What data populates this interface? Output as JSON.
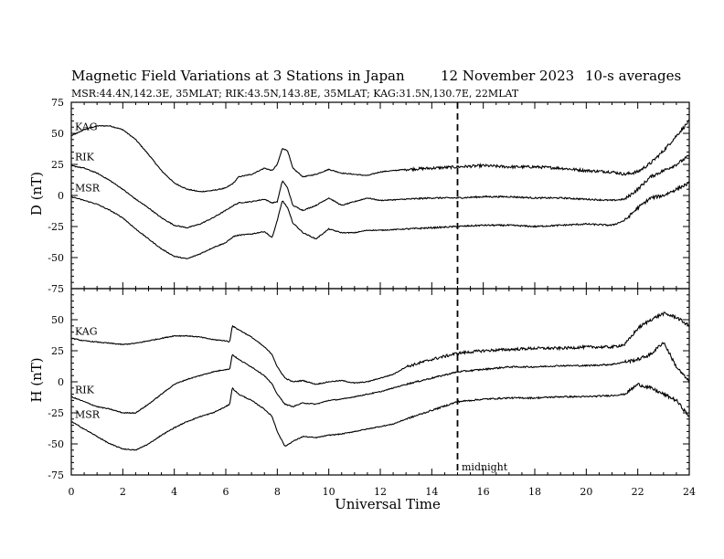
{
  "chart_data": {
    "type": "line",
    "title": {
      "main": "Magnetic Field Variations at 3 Stations in Japan",
      "date": "12 November 2023",
      "averaging": "10-s averages"
    },
    "subtitle": "MSR:44.4N,142.3E, 35MLAT;  RIK:43.5N,143.8E, 35MLAT;  KAG:31.5N,130.7E, 22MLAT",
    "xlabel": "Universal Time",
    "xlim": [
      0,
      24
    ],
    "xticks": [
      0,
      2,
      4,
      6,
      8,
      10,
      12,
      14,
      16,
      18,
      20,
      22,
      24
    ],
    "grid": false,
    "annotations": [
      {
        "text": "midnight",
        "x": 15,
        "style": "dashed-vertical-line"
      }
    ],
    "panels": [
      {
        "name": "D",
        "ylabel": "D (nT)",
        "ylim": [
          -75,
          75
        ],
        "yticks": [
          75,
          50,
          25,
          0,
          -25,
          -50,
          -75
        ],
        "series": [
          {
            "name": "KAG",
            "x": [
              0,
              0.5,
              1,
              1.5,
              2,
              2.5,
              3,
              3.5,
              4,
              4.5,
              5,
              5.5,
              6,
              6.3,
              6.5,
              7,
              7.5,
              7.8,
              8,
              8.2,
              8.4,
              8.6,
              9,
              9.5,
              10,
              10.5,
              11,
              11.5,
              12,
              13,
              14,
              15,
              16,
              17,
              18,
              19,
              20,
              21,
              21.5,
              22,
              22.5,
              23,
              23.5,
              24
            ],
            "values": [
              48,
              53,
              56,
              56,
              53,
              45,
              33,
              20,
              10,
              5,
              3,
              4,
              6,
              10,
              15,
              17,
              22,
              20,
              25,
              38,
              36,
              22,
              15,
              17,
              21,
              18,
              17,
              16,
              19,
              21,
              22,
              23,
              24,
              23,
              23,
              22,
              20,
              19,
              17,
              19,
              26,
              36,
              48,
              60
            ]
          },
          {
            "name": "RIK",
            "x": [
              0,
              0.5,
              1,
              1.5,
              2,
              2.5,
              3,
              3.5,
              4,
              4.5,
              5,
              5.5,
              6,
              6.3,
              6.5,
              7,
              7.5,
              7.8,
              8,
              8.2,
              8.4,
              8.6,
              9,
              9.5,
              10,
              10.5,
              11,
              11.5,
              12,
              13,
              14,
              15,
              16,
              17,
              18,
              19,
              20,
              21,
              21.5,
              22,
              22.5,
              23,
              23.5,
              24
            ],
            "values": [
              24,
              22,
              18,
              12,
              5,
              -3,
              -10,
              -18,
              -24,
              -26,
              -23,
              -18,
              -12,
              -8,
              -6,
              -5,
              -3,
              -6,
              -5,
              12,
              6,
              -8,
              -12,
              -8,
              -2,
              -8,
              -5,
              -2,
              -4,
              -3,
              -2,
              -2,
              -1,
              -1,
              -2,
              -2,
              -3,
              -4,
              -3,
              5,
              15,
              20,
              25,
              32
            ]
          },
          {
            "name": "MSR",
            "x": [
              0,
              0.5,
              1,
              1.5,
              2,
              2.5,
              3,
              3.5,
              4,
              4.5,
              5,
              5.5,
              6,
              6.3,
              6.5,
              7,
              7.5,
              7.8,
              8,
              8.2,
              8.4,
              8.6,
              9,
              9.5,
              10,
              10.5,
              11,
              11.5,
              12,
              13,
              14,
              15,
              16,
              17,
              18,
              19,
              20,
              21,
              21.5,
              22,
              22.5,
              23,
              23.5,
              24
            ],
            "values": [
              -1,
              -4,
              -7,
              -12,
              -18,
              -27,
              -35,
              -43,
              -49,
              -51,
              -47,
              -42,
              -38,
              -33,
              -32,
              -31,
              -29,
              -34,
              -20,
              -4,
              -10,
              -22,
              -30,
              -35,
              -27,
              -30,
              -30,
              -28,
              -28,
              -27,
              -26,
              -25,
              -24,
              -24,
              -25,
              -24,
              -23,
              -24,
              -20,
              -10,
              -2,
              0,
              5,
              10
            ]
          }
        ]
      },
      {
        "name": "H",
        "ylabel": "H (nT)",
        "ylim": [
          -75,
          75
        ],
        "yticks": [
          50,
          25,
          0,
          -25,
          -50,
          -75
        ],
        "series": [
          {
            "name": "KAG",
            "x": [
              0,
              0.5,
              1,
              1.5,
              2,
              2.5,
              3,
              3.5,
              4,
              4.5,
              5,
              5.5,
              6,
              6.15,
              6.25,
              6.5,
              7,
              7.5,
              7.8,
              8,
              8.3,
              8.6,
              9,
              9.5,
              10,
              10.5,
              11,
              11.5,
              12,
              12.5,
              13,
              14,
              15,
              16,
              17,
              18,
              19,
              20,
              21,
              21.5,
              22,
              22.5,
              23,
              23.5,
              24
            ],
            "values": [
              35,
              33,
              32,
              31,
              30,
              31,
              33,
              35,
              37,
              37,
              36,
              34,
              33,
              32,
              45,
              42,
              36,
              28,
              22,
              12,
              3,
              0,
              1,
              -2,
              0,
              1,
              -1,
              0,
              3,
              6,
              12,
              18,
              23,
              25,
              26,
              27,
              27,
              28,
              28,
              30,
              43,
              50,
              55,
              52,
              45
            ]
          },
          {
            "name": "RIK",
            "x": [
              0,
              0.5,
              1,
              1.5,
              2,
              2.5,
              3,
              3.5,
              4,
              4.5,
              5,
              5.5,
              6,
              6.15,
              6.25,
              6.5,
              7,
              7.5,
              7.8,
              8,
              8.3,
              8.6,
              9,
              9.5,
              10,
              10.5,
              11,
              11.5,
              12,
              12.5,
              13,
              14,
              15,
              16,
              17,
              18,
              19,
              20,
              21,
              21.5,
              22,
              22.5,
              23,
              23.5,
              24
            ],
            "values": [
              -12,
              -16,
              -20,
              -22,
              -25,
              -25,
              -18,
              -10,
              -2,
              2,
              5,
              8,
              10,
              10,
              22,
              18,
              12,
              5,
              -2,
              -10,
              -18,
              -20,
              -17,
              -18,
              -15,
              -14,
              -12,
              -10,
              -8,
              -5,
              -2,
              3,
              8,
              10,
              12,
              12,
              13,
              13,
              14,
              16,
              18,
              22,
              32,
              12,
              0
            ]
          },
          {
            "name": "MSR",
            "x": [
              0,
              0.5,
              1,
              1.5,
              2,
              2.5,
              3,
              3.5,
              4,
              4.5,
              5,
              5.5,
              6,
              6.15,
              6.25,
              6.5,
              7,
              7.5,
              7.8,
              8,
              8.3,
              8.6,
              9,
              9.5,
              10,
              10.5,
              11,
              11.5,
              12,
              12.5,
              13,
              14,
              15,
              16,
              17,
              18,
              19,
              20,
              21,
              21.5,
              22,
              22.5,
              23,
              23.5,
              24
            ],
            "values": [
              -32,
              -38,
              -44,
              -50,
              -54,
              -55,
              -50,
              -43,
              -37,
              -32,
              -28,
              -25,
              -20,
              -18,
              -5,
              -10,
              -15,
              -22,
              -28,
              -40,
              -52,
              -48,
              -44,
              -45,
              -43,
              -42,
              -40,
              -38,
              -36,
              -34,
              -30,
              -23,
              -16,
              -14,
              -13,
              -13,
              -12,
              -12,
              -11,
              -10,
              -2,
              -5,
              -10,
              -15,
              -28
            ]
          }
        ]
      }
    ]
  }
}
